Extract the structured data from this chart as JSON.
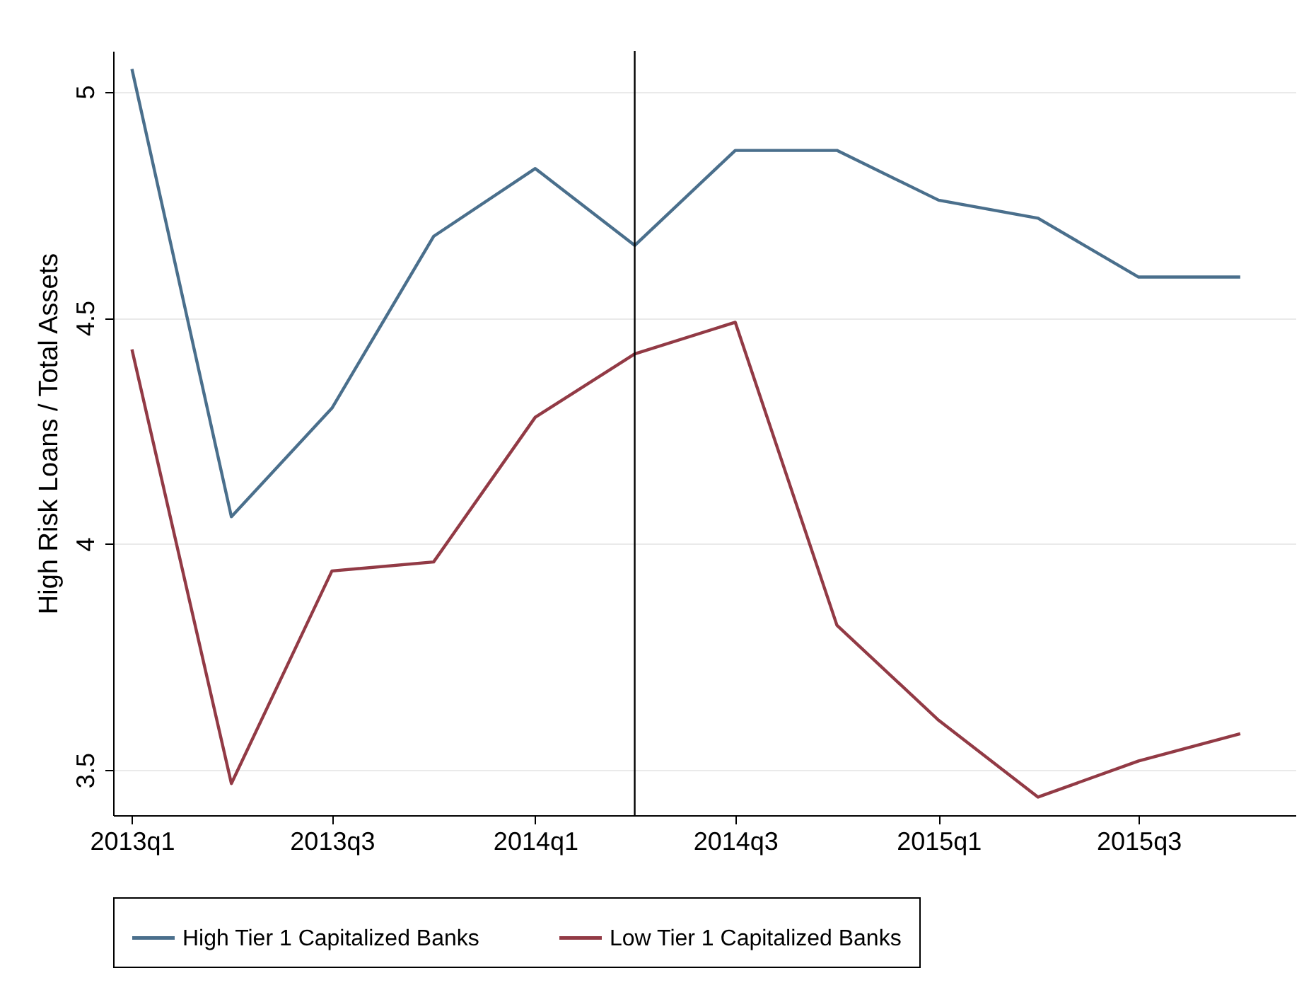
{
  "chart_data": {
    "type": "line",
    "ylabel": "High Risk Loans / Total Assets",
    "x": [
      "2013-01",
      "2013-04",
      "2013-07",
      "2013-10",
      "2014-01",
      "2014-04",
      "2014-07",
      "2014-10",
      "2015-01",
      "2015-04",
      "2015-07",
      "2015-10"
    ],
    "series": [
      {
        "name": "High Tier 1 Capitalized Banks",
        "color": "#4a6f8c",
        "values": [
          5.05,
          4.06,
          4.3,
          4.68,
          4.83,
          4.66,
          4.87,
          4.87,
          4.76,
          4.72,
          4.59,
          4.59
        ]
      },
      {
        "name": "Low Tier 1 Capitalized Banks",
        "color": "#923a45",
        "values": [
          4.43,
          3.47,
          3.94,
          3.96,
          4.28,
          4.42,
          4.49,
          3.82,
          3.61,
          3.44,
          3.52,
          3.58
        ]
      }
    ],
    "xlim": [
      "2012-12-15",
      "2015-11-20"
    ],
    "xticks": [
      {
        "value": "2013-01",
        "label": "2013q1"
      },
      {
        "value": "2013-07",
        "label": "2013q3"
      },
      {
        "value": "2014-01",
        "label": "2014q1"
      },
      {
        "value": "2014-07",
        "label": "2014q3"
      },
      {
        "value": "2015-01",
        "label": "2015q1"
      },
      {
        "value": "2015-07",
        "label": "2015q3"
      }
    ],
    "ylim": [
      3.4,
      5.09
    ],
    "yticks": [
      3.5,
      4,
      4.5,
      5
    ],
    "ref_lines": [
      {
        "axis": "x",
        "value": "2014-04",
        "color": "#000000"
      }
    ],
    "grid": "y",
    "legend": "bottom",
    "marker": "none",
    "line_style": "solid"
  }
}
